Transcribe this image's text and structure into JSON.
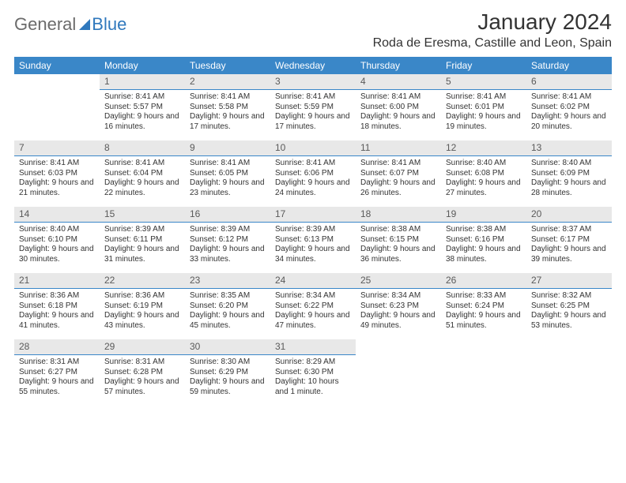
{
  "logo": {
    "word1": "General",
    "word2": "Blue"
  },
  "title": "January 2024",
  "location": "Roda de Eresma, Castille and Leon, Spain",
  "weekdays": [
    "Sunday",
    "Monday",
    "Tuesday",
    "Wednesday",
    "Thursday",
    "Friday",
    "Saturday"
  ],
  "colors": {
    "header_bg": "#3a87c8",
    "header_text": "#ffffff",
    "daynum_bg": "#e8e8e8",
    "daynum_border": "#3a87c8",
    "body_text": "#333333",
    "logo_gray": "#6b6b6b",
    "logo_blue": "#2f78bd"
  },
  "weeks": [
    [
      {
        "n": "",
        "sr": "",
        "ss": "",
        "dl": ""
      },
      {
        "n": "1",
        "sr": "Sunrise: 8:41 AM",
        "ss": "Sunset: 5:57 PM",
        "dl": "Daylight: 9 hours and 16 minutes."
      },
      {
        "n": "2",
        "sr": "Sunrise: 8:41 AM",
        "ss": "Sunset: 5:58 PM",
        "dl": "Daylight: 9 hours and 17 minutes."
      },
      {
        "n": "3",
        "sr": "Sunrise: 8:41 AM",
        "ss": "Sunset: 5:59 PM",
        "dl": "Daylight: 9 hours and 17 minutes."
      },
      {
        "n": "4",
        "sr": "Sunrise: 8:41 AM",
        "ss": "Sunset: 6:00 PM",
        "dl": "Daylight: 9 hours and 18 minutes."
      },
      {
        "n": "5",
        "sr": "Sunrise: 8:41 AM",
        "ss": "Sunset: 6:01 PM",
        "dl": "Daylight: 9 hours and 19 minutes."
      },
      {
        "n": "6",
        "sr": "Sunrise: 8:41 AM",
        "ss": "Sunset: 6:02 PM",
        "dl": "Daylight: 9 hours and 20 minutes."
      }
    ],
    [
      {
        "n": "7",
        "sr": "Sunrise: 8:41 AM",
        "ss": "Sunset: 6:03 PM",
        "dl": "Daylight: 9 hours and 21 minutes."
      },
      {
        "n": "8",
        "sr": "Sunrise: 8:41 AM",
        "ss": "Sunset: 6:04 PM",
        "dl": "Daylight: 9 hours and 22 minutes."
      },
      {
        "n": "9",
        "sr": "Sunrise: 8:41 AM",
        "ss": "Sunset: 6:05 PM",
        "dl": "Daylight: 9 hours and 23 minutes."
      },
      {
        "n": "10",
        "sr": "Sunrise: 8:41 AM",
        "ss": "Sunset: 6:06 PM",
        "dl": "Daylight: 9 hours and 24 minutes."
      },
      {
        "n": "11",
        "sr": "Sunrise: 8:41 AM",
        "ss": "Sunset: 6:07 PM",
        "dl": "Daylight: 9 hours and 26 minutes."
      },
      {
        "n": "12",
        "sr": "Sunrise: 8:40 AM",
        "ss": "Sunset: 6:08 PM",
        "dl": "Daylight: 9 hours and 27 minutes."
      },
      {
        "n": "13",
        "sr": "Sunrise: 8:40 AM",
        "ss": "Sunset: 6:09 PM",
        "dl": "Daylight: 9 hours and 28 minutes."
      }
    ],
    [
      {
        "n": "14",
        "sr": "Sunrise: 8:40 AM",
        "ss": "Sunset: 6:10 PM",
        "dl": "Daylight: 9 hours and 30 minutes."
      },
      {
        "n": "15",
        "sr": "Sunrise: 8:39 AM",
        "ss": "Sunset: 6:11 PM",
        "dl": "Daylight: 9 hours and 31 minutes."
      },
      {
        "n": "16",
        "sr": "Sunrise: 8:39 AM",
        "ss": "Sunset: 6:12 PM",
        "dl": "Daylight: 9 hours and 33 minutes."
      },
      {
        "n": "17",
        "sr": "Sunrise: 8:39 AM",
        "ss": "Sunset: 6:13 PM",
        "dl": "Daylight: 9 hours and 34 minutes."
      },
      {
        "n": "18",
        "sr": "Sunrise: 8:38 AM",
        "ss": "Sunset: 6:15 PM",
        "dl": "Daylight: 9 hours and 36 minutes."
      },
      {
        "n": "19",
        "sr": "Sunrise: 8:38 AM",
        "ss": "Sunset: 6:16 PM",
        "dl": "Daylight: 9 hours and 38 minutes."
      },
      {
        "n": "20",
        "sr": "Sunrise: 8:37 AM",
        "ss": "Sunset: 6:17 PM",
        "dl": "Daylight: 9 hours and 39 minutes."
      }
    ],
    [
      {
        "n": "21",
        "sr": "Sunrise: 8:36 AM",
        "ss": "Sunset: 6:18 PM",
        "dl": "Daylight: 9 hours and 41 minutes."
      },
      {
        "n": "22",
        "sr": "Sunrise: 8:36 AM",
        "ss": "Sunset: 6:19 PM",
        "dl": "Daylight: 9 hours and 43 minutes."
      },
      {
        "n": "23",
        "sr": "Sunrise: 8:35 AM",
        "ss": "Sunset: 6:20 PM",
        "dl": "Daylight: 9 hours and 45 minutes."
      },
      {
        "n": "24",
        "sr": "Sunrise: 8:34 AM",
        "ss": "Sunset: 6:22 PM",
        "dl": "Daylight: 9 hours and 47 minutes."
      },
      {
        "n": "25",
        "sr": "Sunrise: 8:34 AM",
        "ss": "Sunset: 6:23 PM",
        "dl": "Daylight: 9 hours and 49 minutes."
      },
      {
        "n": "26",
        "sr": "Sunrise: 8:33 AM",
        "ss": "Sunset: 6:24 PM",
        "dl": "Daylight: 9 hours and 51 minutes."
      },
      {
        "n": "27",
        "sr": "Sunrise: 8:32 AM",
        "ss": "Sunset: 6:25 PM",
        "dl": "Daylight: 9 hours and 53 minutes."
      }
    ],
    [
      {
        "n": "28",
        "sr": "Sunrise: 8:31 AM",
        "ss": "Sunset: 6:27 PM",
        "dl": "Daylight: 9 hours and 55 minutes."
      },
      {
        "n": "29",
        "sr": "Sunrise: 8:31 AM",
        "ss": "Sunset: 6:28 PM",
        "dl": "Daylight: 9 hours and 57 minutes."
      },
      {
        "n": "30",
        "sr": "Sunrise: 8:30 AM",
        "ss": "Sunset: 6:29 PM",
        "dl": "Daylight: 9 hours and 59 minutes."
      },
      {
        "n": "31",
        "sr": "Sunrise: 8:29 AM",
        "ss": "Sunset: 6:30 PM",
        "dl": "Daylight: 10 hours and 1 minute."
      },
      {
        "n": "",
        "sr": "",
        "ss": "",
        "dl": ""
      },
      {
        "n": "",
        "sr": "",
        "ss": "",
        "dl": ""
      },
      {
        "n": "",
        "sr": "",
        "ss": "",
        "dl": ""
      }
    ]
  ]
}
